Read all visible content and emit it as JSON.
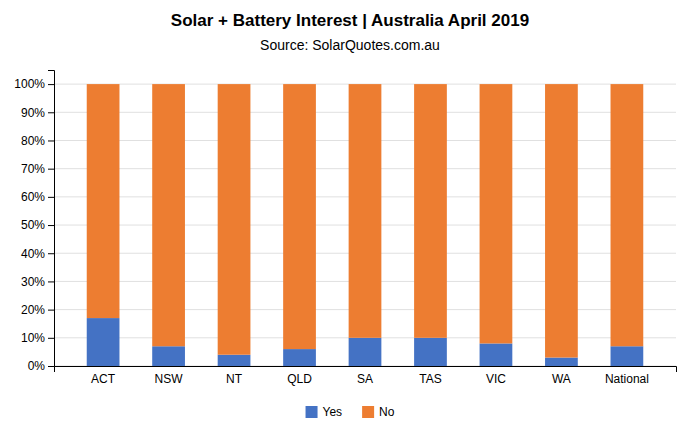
{
  "chart_data": {
    "type": "bar",
    "stacked": true,
    "title": "Solar + Battery Interest  |  Australia April 2019",
    "subtitle": "Source: SolarQuotes.com.au",
    "categories": [
      "ACT",
      "NSW",
      "NT",
      "QLD",
      "SA",
      "TAS",
      "VIC",
      "WA",
      "National"
    ],
    "series": [
      {
        "name": "Yes",
        "color": "#4472C4",
        "values": [
          17,
          7,
          4,
          6,
          10,
          10,
          8,
          3,
          7
        ]
      },
      {
        "name": "No",
        "color": "#ED7D31",
        "values": [
          83,
          93,
          96,
          94,
          90,
          90,
          92,
          97,
          93
        ]
      }
    ],
    "ylim": [
      0,
      105
    ],
    "yticks": [
      {
        "value": 0,
        "label": "0%"
      },
      {
        "value": 10,
        "label": "10%"
      },
      {
        "value": 20,
        "label": "20%"
      },
      {
        "value": 30,
        "label": "30%"
      },
      {
        "value": 40,
        "label": "40%"
      },
      {
        "value": 50,
        "label": "50%"
      },
      {
        "value": 60,
        "label": "60%"
      },
      {
        "value": 70,
        "label": "70%"
      },
      {
        "value": 80,
        "label": "80%"
      },
      {
        "value": 90,
        "label": "90%"
      },
      {
        "value": 100,
        "label": "100%"
      }
    ],
    "grid": true,
    "legend": "bottom"
  }
}
